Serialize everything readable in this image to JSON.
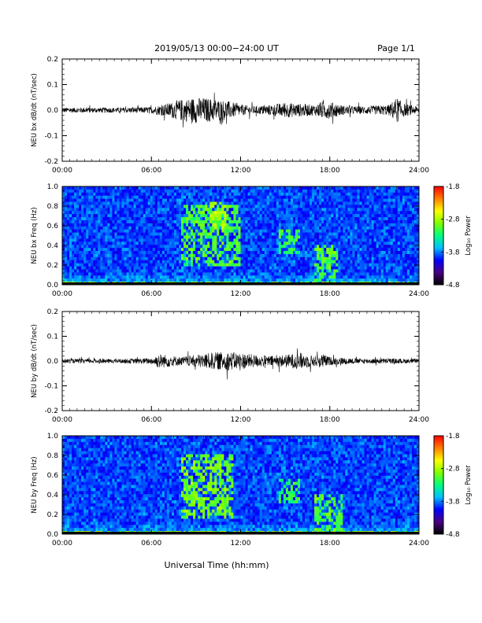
{
  "header": {
    "title": "2019/05/13  00:00−24:00 UT",
    "page_label": "Page 1/1"
  },
  "footer": {
    "xlabel": "Universal Time (hh:mm)"
  },
  "colors": {
    "trace": "#000000",
    "axis": "#000000",
    "background": "#ffffff",
    "colormap": [
      "#000000",
      "#4b0082",
      "#0000ff",
      "#00bfff",
      "#00ff7f",
      "#7fff00",
      "#ffff00",
      "#ff7f00",
      "#ff0000"
    ]
  },
  "chart_data": [
    {
      "type": "line",
      "id": "bx-timeseries",
      "ylabel": "NEU bx dB/dt (nT/sec)",
      "x_ticks": [
        "00:00",
        "06:00",
        "12:00",
        "18:00",
        "24:00"
      ],
      "y_ticks": [
        "0.2",
        "0.1",
        "0.0",
        "-0.1",
        "-0.2"
      ],
      "xlim_hours": [
        0,
        24
      ],
      "ylim": [
        -0.2,
        0.2
      ],
      "envelope": {
        "hours": [
          0,
          2,
          4,
          6,
          7,
          8,
          9,
          10,
          11,
          12,
          13,
          14,
          15,
          16,
          17,
          17.5,
          18,
          19,
          20,
          21,
          22,
          22.5,
          23,
          24
        ],
        "amplitude": [
          0.012,
          0.012,
          0.012,
          0.015,
          0.03,
          0.05,
          0.06,
          0.055,
          0.045,
          0.025,
          0.018,
          0.025,
          0.035,
          0.03,
          0.025,
          0.04,
          0.04,
          0.02,
          0.018,
          0.02,
          0.025,
          0.06,
          0.03,
          0.015
        ]
      }
    },
    {
      "type": "heatmap",
      "id": "bx-spectrogram",
      "ylabel": "NEU bx Freq (Hz)",
      "x_ticks": [
        "00:00",
        "06:00",
        "12:00",
        "18:00",
        "24:00"
      ],
      "y_ticks": [
        "1.0",
        "0.8",
        "0.6",
        "0.4",
        "0.2",
        "0.0"
      ],
      "xlim_hours": [
        0,
        24
      ],
      "ylim_hz": [
        0,
        1.0
      ],
      "colorbar": {
        "label": "Log₁₀ Power",
        "ticks": [
          "-1.8",
          "-2.8",
          "-3.8",
          "-4.8"
        ],
        "range": [
          -4.8,
          -1.8
        ]
      },
      "features": [
        {
          "hours": [
            8.0,
            12.0
          ],
          "freq_hz": [
            0.2,
            0.8
          ],
          "log_power": -2.9
        },
        {
          "hours": [
            10.0,
            11.0
          ],
          "freq_hz": [
            0.55,
            0.85
          ],
          "log_power": -2.6
        },
        {
          "hours": [
            14.5,
            16.0
          ],
          "freq_hz": [
            0.3,
            0.55
          ],
          "log_power": -3.0
        },
        {
          "hours": [
            17.0,
            18.5
          ],
          "freq_hz": [
            0.0,
            0.4
          ],
          "log_power": -2.9
        },
        {
          "hours": [
            0.0,
            24.0
          ],
          "freq_hz": [
            0.0,
            0.04
          ],
          "log_power": -2.6
        }
      ]
    },
    {
      "type": "line",
      "id": "by-timeseries",
      "ylabel": "NEU by dB/dt (nT/sec)",
      "x_ticks": [
        "00:00",
        "06:00",
        "12:00",
        "18:00",
        "24:00"
      ],
      "y_ticks": [
        "0.2",
        "0.1",
        "0.0",
        "-0.1",
        "-0.2"
      ],
      "xlim_hours": [
        0,
        24
      ],
      "ylim": [
        -0.2,
        0.2
      ],
      "envelope": {
        "hours": [
          0,
          2,
          4,
          6,
          6.5,
          8,
          9,
          10,
          11,
          12,
          13,
          14,
          15,
          16,
          17,
          17.5,
          18,
          20,
          22,
          24
        ],
        "amplitude": [
          0.01,
          0.01,
          0.01,
          0.015,
          0.035,
          0.02,
          0.03,
          0.04,
          0.045,
          0.04,
          0.03,
          0.025,
          0.03,
          0.04,
          0.025,
          0.035,
          0.02,
          0.012,
          0.012,
          0.01
        ]
      }
    },
    {
      "type": "heatmap",
      "id": "by-spectrogram",
      "ylabel": "NEU by Freq (Hz)",
      "x_ticks": [
        "00:00",
        "06:00",
        "12:00",
        "18:00",
        "24:00"
      ],
      "y_ticks": [
        "1.0",
        "0.8",
        "0.6",
        "0.4",
        "0.2",
        "0.0"
      ],
      "xlim_hours": [
        0,
        24
      ],
      "ylim_hz": [
        0,
        1.0
      ],
      "colorbar": {
        "label": "Log₁₀ Power",
        "ticks": [
          "-1.8",
          "-2.8",
          "-3.8",
          "-4.8"
        ],
        "range": [
          -4.8,
          -1.8
        ]
      },
      "features": [
        {
          "hours": [
            8.0,
            11.5
          ],
          "freq_hz": [
            0.15,
            0.8
          ],
          "log_power": -2.8
        },
        {
          "hours": [
            14.5,
            16.0
          ],
          "freq_hz": [
            0.3,
            0.55
          ],
          "log_power": -3.0
        },
        {
          "hours": [
            17.0,
            18.8
          ],
          "freq_hz": [
            0.0,
            0.4
          ],
          "log_power": -2.9
        },
        {
          "hours": [
            0.0,
            24.0
          ],
          "freq_hz": [
            0.0,
            0.04
          ],
          "log_power": -2.6
        }
      ]
    }
  ]
}
